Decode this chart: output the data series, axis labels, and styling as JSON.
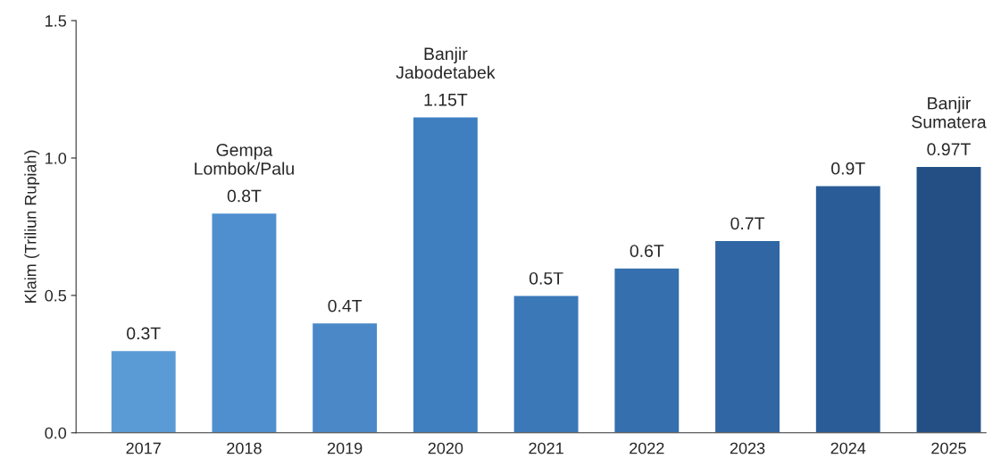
{
  "chart_data": {
    "type": "bar",
    "ylabel": "Klaim (Triliun Rupiah)",
    "categories": [
      "2017",
      "2018",
      "2019",
      "2020",
      "2021",
      "2022",
      "2023",
      "2024",
      "2025"
    ],
    "values": [
      0.3,
      0.8,
      0.4,
      1.15,
      0.5,
      0.6,
      0.7,
      0.9,
      0.97
    ],
    "colors": [
      "#5b9bd5",
      "#4f8fcf",
      "#4a88c8",
      "#3f7fc0",
      "#3b78b8",
      "#356fae",
      "#2f66a3",
      "#2a5d98",
      "#234f85"
    ],
    "value_labels": [
      "0.3T",
      "0.8T",
      "0.4T",
      "1.15T",
      "0.5T",
      "0.6T",
      "0.7T",
      "0.9T",
      "0.97T"
    ],
    "annotations": [
      {
        "text": "Gempa\nLombok/Palu",
        "x": "2018",
        "y": 0.8
      },
      {
        "text": "Banjir\nJabodetabek",
        "x": "2020",
        "y": 1.15
      },
      {
        "text": "Banjir\nSumatera",
        "x": "2025",
        "y": 0.97
      }
    ],
    "ylim": [
      0,
      1.5
    ],
    "yticks": [
      {
        "value": 0,
        "label": "0.0"
      },
      0.5,
      {
        "value": 1,
        "label": "1.0"
      },
      1.5
    ],
    "grid": false,
    "legend": false
  }
}
